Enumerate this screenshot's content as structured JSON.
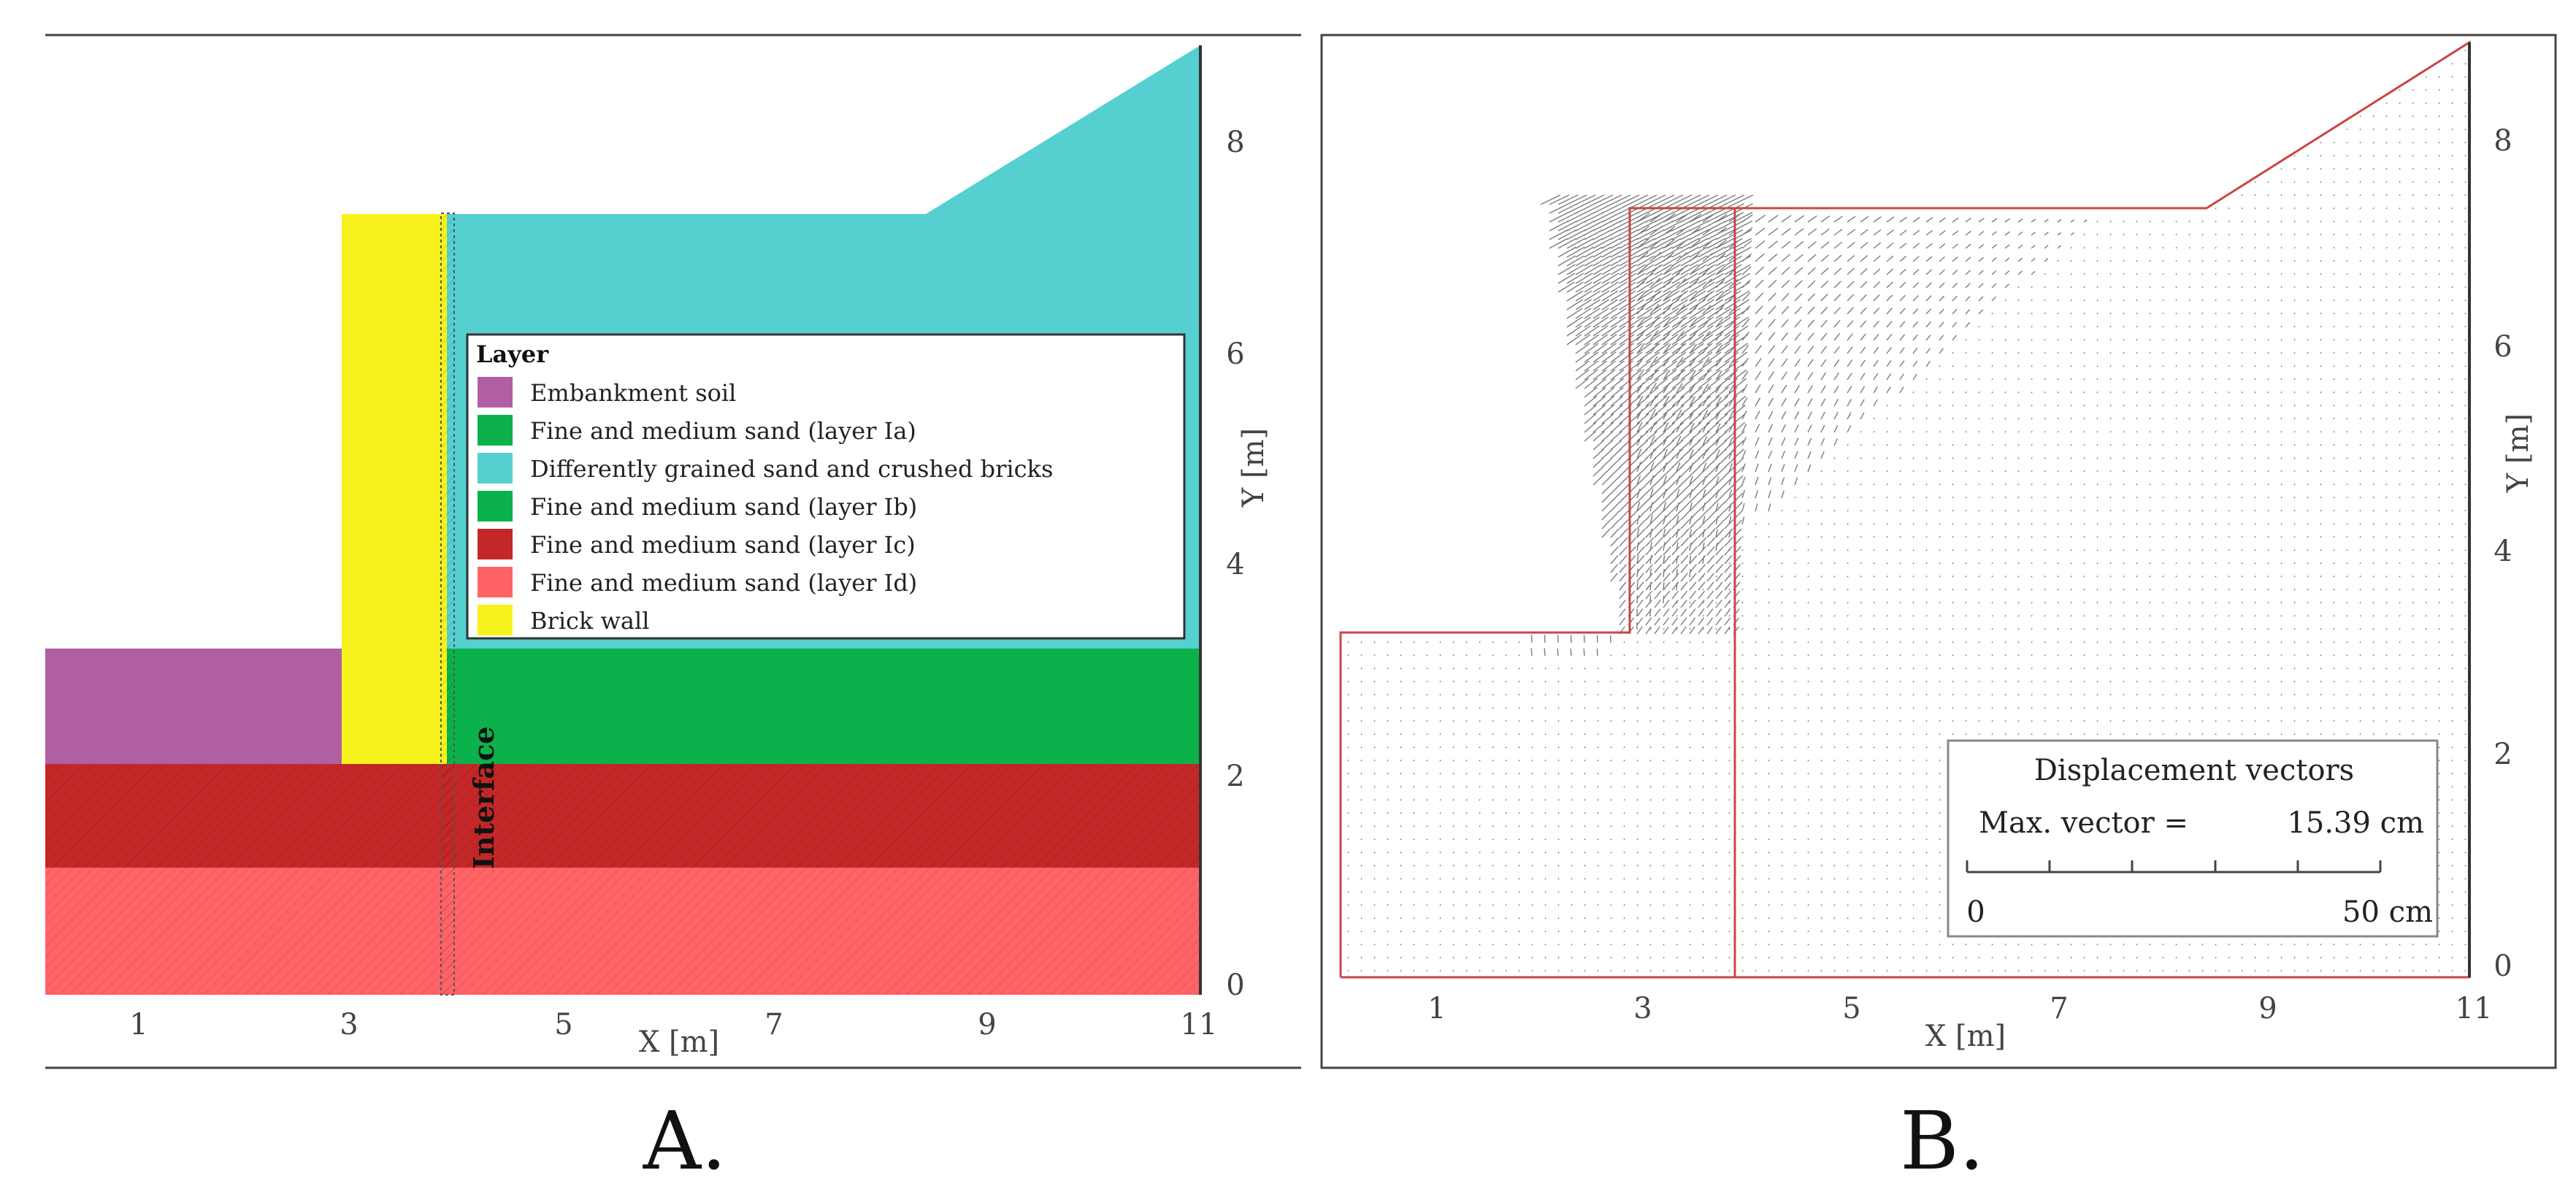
{
  "panel_a": {
    "caption": "A.",
    "x_axis_label": "X [m]",
    "y_axis_label": "Y [m]",
    "x_ticks": [
      "1",
      "3",
      "5",
      "7",
      "9",
      "11"
    ],
    "y_ticks": [
      "0",
      "2",
      "4",
      "6",
      "8"
    ],
    "interface_label": "Interface",
    "legend": {
      "title": "Layer",
      "items": [
        {
          "label": "Embankment soil",
          "color": "#b05fa3"
        },
        {
          "label": "Fine and medium sand (layer Ia)",
          "color": "#0bb14b"
        },
        {
          "label": "Differently grained sand and crushed bricks",
          "color": "#55cfd0"
        },
        {
          "label": "Fine and medium sand (layer Ib)",
          "color": "#0bb14b"
        },
        {
          "label": "Fine and medium sand (layer Ic)",
          "color": "#c42727"
        },
        {
          "label": "Fine and medium sand (layer Id)",
          "color": "#ff6366"
        },
        {
          "label": "Brick wall",
          "color": "#f7f21c"
        }
      ]
    }
  },
  "panel_b": {
    "caption": "B.",
    "x_axis_label": "X [m]",
    "y_axis_label": "Y [m]",
    "x_ticks": [
      "1",
      "3",
      "5",
      "7",
      "9",
      "11"
    ],
    "y_ticks": [
      "0",
      "2",
      "4",
      "6",
      "8"
    ],
    "scale_box": {
      "title": "Displacement vectors",
      "max_label": "Max. vector =",
      "max_value": "15.39 cm",
      "scale_start": "0",
      "scale_end": "50 cm"
    }
  }
}
